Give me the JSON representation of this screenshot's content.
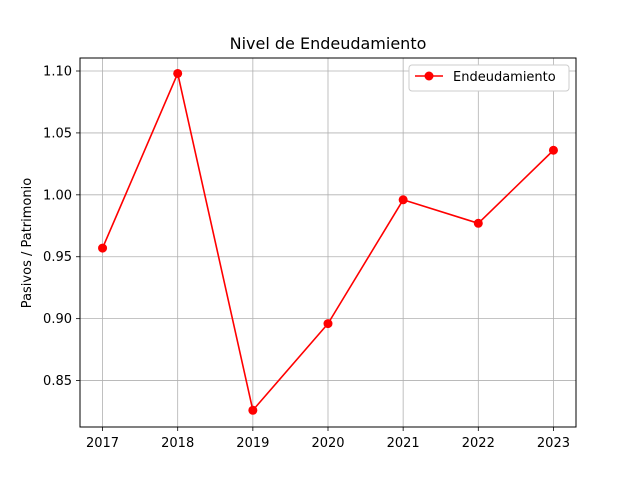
{
  "chart_data": {
    "type": "line",
    "title": "Nivel de Endeudamiento",
    "xlabel": "",
    "ylabel": "Pasivos / Patrimonio",
    "x": [
      2017,
      2018,
      2019,
      2020,
      2021,
      2022,
      2023
    ],
    "series": [
      {
        "name": "Endeudamiento",
        "color": "#ff0000",
        "marker": "circle",
        "values": [
          0.957,
          1.098,
          0.826,
          0.896,
          0.996,
          0.977,
          1.036
        ]
      }
    ],
    "xticks": [
      "2017",
      "2018",
      "2019",
      "2020",
      "2021",
      "2022",
      "2023"
    ],
    "yticks": [
      "0.85",
      "0.90",
      "0.95",
      "1.00",
      "1.05",
      "1.10"
    ],
    "ylim": [
      0.8125,
      1.1105
    ],
    "xlim": [
      2016.7,
      2023.3
    ],
    "grid": true,
    "legend_position": "top-right"
  }
}
